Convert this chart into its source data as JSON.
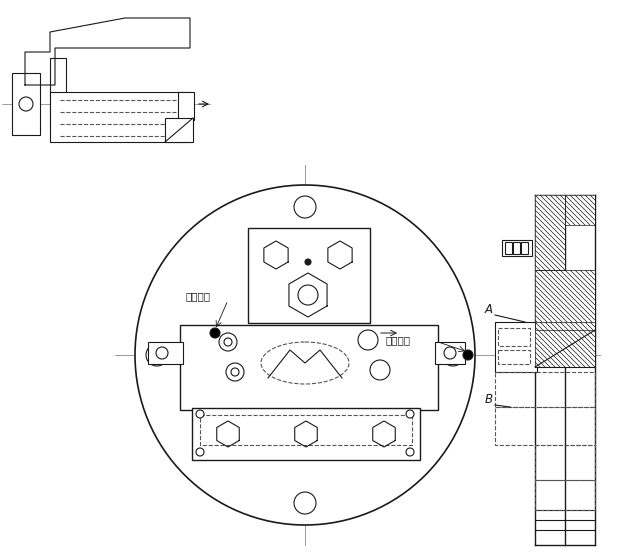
{
  "bg_color": "#ffffff",
  "line_color": "#1a1a1a",
  "dash_color": "#555555",
  "figure_size": [
    6.4,
    5.6
  ],
  "dpi": 100,
  "label_A": "A",
  "label_B": "B",
  "label_pin1": "定位止销",
  "label_pin2": "定位止销"
}
